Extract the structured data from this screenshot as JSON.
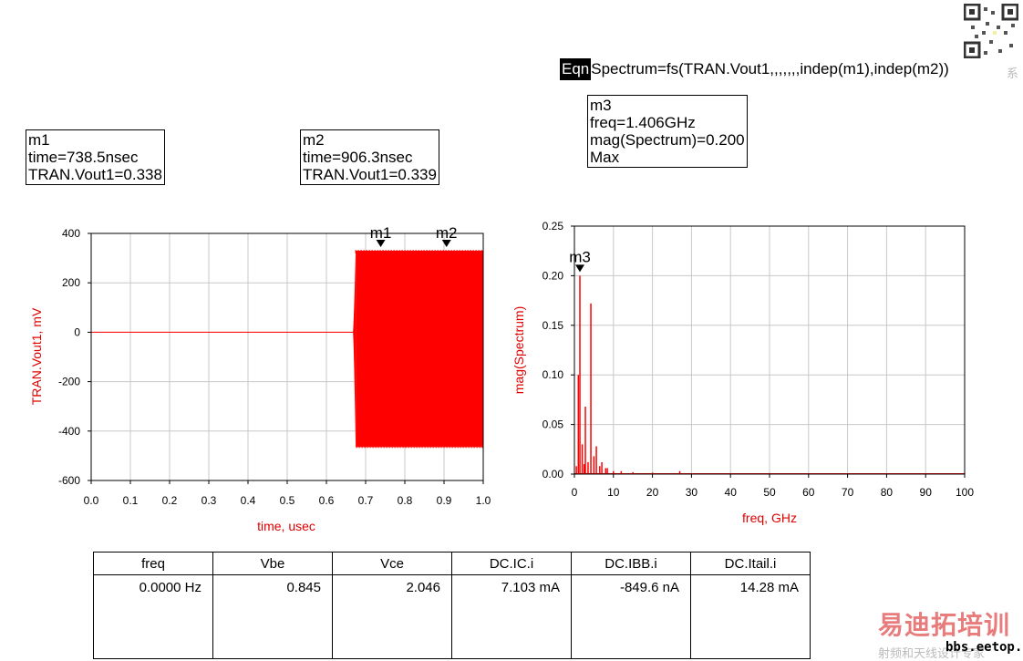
{
  "equation": {
    "tag": "Eqn",
    "text": "Spectrum=fs(TRAN.Vout1,,,,,,,indep(m1),indep(m2))"
  },
  "markers": {
    "m1": {
      "name": "m1",
      "line1": "time=738.5nsec",
      "line2": "TRAN.Vout1=0.338"
    },
    "m2": {
      "name": "m2",
      "line1": "time=906.3nsec",
      "line2": "TRAN.Vout1=0.339"
    },
    "m3": {
      "name": "m3",
      "line1": "freq=1.406GHz",
      "line2": "mag(Spectrum)=0.200",
      "line3": "Max"
    }
  },
  "colors": {
    "trace": "#ff0000",
    "grid": "#c8c8c8",
    "axis_label": "#e00000"
  },
  "chart_data": [
    {
      "type": "line",
      "xlabel": "time, usec",
      "ylabel": "TRAN.Vout1, mV",
      "xlim": [
        0.0,
        1.0
      ],
      "ylim": [
        -600,
        400
      ],
      "x_ticks": [
        "0.0",
        "0.1",
        "0.2",
        "0.3",
        "0.4",
        "0.5",
        "0.6",
        "0.7",
        "0.8",
        "0.9",
        "1.0"
      ],
      "y_ticks": [
        "400",
        "200",
        "0",
        "-200",
        "-400",
        "-600"
      ],
      "grid": true,
      "series": [
        {
          "values": [
            [
              0.0,
              0
            ],
            [
              0.66,
              0
            ],
            [
              0.67,
              10
            ],
            [
              0.675,
              330
            ],
            [
              1.0,
              330
            ]
          ],
          "envelope_upper": 330,
          "envelope_lower": -465,
          "oscillation_start": 0.67
        }
      ],
      "markers": [
        {
          "name": "m1",
          "x": 0.7385
        },
        {
          "name": "m2",
          "x": 0.9063
        }
      ]
    },
    {
      "type": "bar",
      "xlabel": "freq, GHz",
      "ylabel": "mag(Spectrum)",
      "xlim": [
        0,
        100
      ],
      "ylim": [
        0.0,
        0.25
      ],
      "x_ticks": [
        "0",
        "10",
        "20",
        "30",
        "40",
        "50",
        "60",
        "70",
        "80",
        "90",
        "100"
      ],
      "y_ticks": [
        "0.25",
        "0.20",
        "0.15",
        "0.10",
        "0.05",
        "0.00"
      ],
      "grid": true,
      "series": [
        {
          "x": [
            0.5,
            1.0,
            1.406,
            2.0,
            2.5,
            2.812,
            3.5,
            4.218,
            5.0,
            5.624,
            6.5,
            7.03,
            8.0,
            8.436,
            10.0,
            12.0,
            15.0,
            20.0,
            27.0,
            30.0,
            40.0,
            50.0,
            60.0,
            70.0,
            80.0,
            90.0,
            100.0
          ],
          "values": [
            0.008,
            0.1,
            0.2,
            0.03,
            0.01,
            0.068,
            0.012,
            0.172,
            0.018,
            0.028,
            0.008,
            0.012,
            0.006,
            0.006,
            0.003,
            0.003,
            0.002,
            0.0015,
            0.003,
            0.001,
            0.001,
            0.001,
            0.0008,
            0.0008,
            0.0006,
            0.0006,
            0.0005
          ]
        }
      ],
      "markers": [
        {
          "name": "m3",
          "x": 1.406,
          "y": 0.2
        }
      ]
    }
  ],
  "table": {
    "headers": [
      "freq",
      "Vbe",
      "Vce",
      "DC.IC.i",
      "DC.IBB.i",
      "DC.Itail.i"
    ],
    "row": [
      "0.0000 Hz",
      "0.845",
      "2.046",
      "7.103 mA",
      "-849.6 nA",
      "14.28 mA"
    ]
  },
  "watermark": {
    "main": "易迪拓培训",
    "sub": "射频和天线设计专家",
    "url": "bbs.eetop.cn",
    "side_char": "系"
  }
}
